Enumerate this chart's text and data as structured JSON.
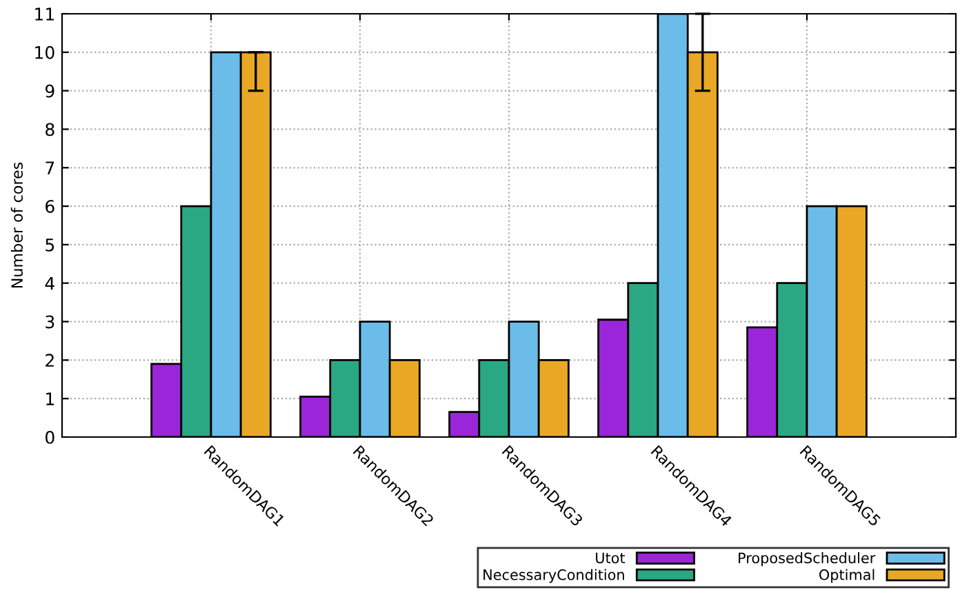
{
  "chart_data": {
    "type": "bar",
    "ylabel": "Number of cores",
    "categories": [
      "RandomDAG1",
      "RandomDAG2",
      "RandomDAG3",
      "RandomDAG4",
      "RandomDAG5"
    ],
    "series": [
      {
        "name": "Utot",
        "color": "#9b26d9",
        "values": [
          1.9,
          1.05,
          0.65,
          3.05,
          2.85
        ]
      },
      {
        "name": "NecessaryCondition",
        "color": "#2aa884",
        "values": [
          6,
          2,
          2,
          4,
          4
        ]
      },
      {
        "name": "ProposedScheduler",
        "color": "#6cbce9",
        "values": [
          10,
          3,
          3,
          11,
          6
        ]
      },
      {
        "name": "Optimal",
        "color": "#e8a825",
        "values": [
          10,
          2,
          2,
          10,
          6
        ],
        "errors": [
          [
            9,
            10
          ],
          null,
          null,
          [
            9,
            11
          ],
          null
        ]
      }
    ],
    "ylim": [
      0,
      11
    ],
    "yticks": [
      0,
      1,
      2,
      3,
      4,
      5,
      6,
      7,
      8,
      9,
      10,
      11
    ],
    "grid": true,
    "legend": "bottom right"
  }
}
